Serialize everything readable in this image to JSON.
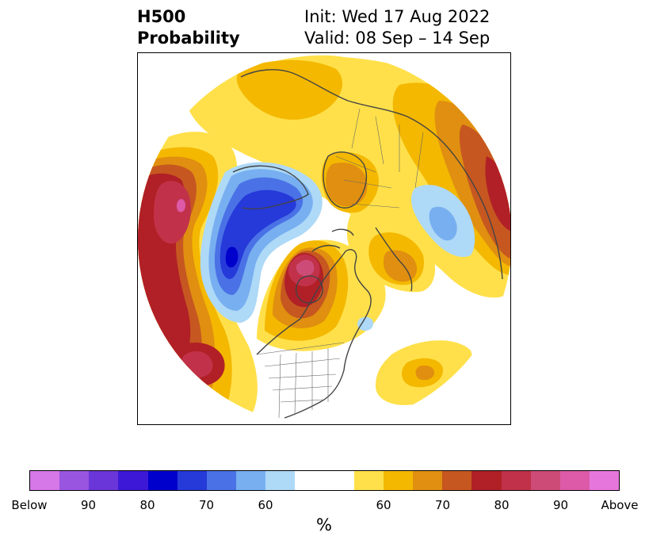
{
  "title": {
    "line1": "H500",
    "line2": "Probability",
    "init": "Init: Wed 17 Aug 2022",
    "valid": "Valid: 08 Sep – 14 Sep"
  },
  "colorbar": {
    "unit": "%",
    "colors": [
      "#d678e8",
      "#9a55e0",
      "#6b36d9",
      "#3d18d6",
      "#0000cc",
      "#2639d9",
      "#4a72e6",
      "#77aff0",
      "#aed9f7",
      "#ffffff",
      "#ffffff",
      "#ffe04a",
      "#f4b800",
      "#e08f10",
      "#c65720",
      "#b02026",
      "#c1324a",
      "#cd4c77",
      "#dc5aa8",
      "#e676dc"
    ],
    "tick_labels": [
      "Below",
      "90",
      "80",
      "70",
      "60",
      "60",
      "70",
      "80",
      "90",
      "Above"
    ]
  },
  "map": {
    "projection": "north-polar-stereographic",
    "field": "500 hPa geopotential height anomaly probability",
    "colors": {
      "above_60": "#ffe04a",
      "above_65": "#f4b800",
      "above_70": "#e08f10",
      "above_75": "#c65720",
      "above_80": "#b02026",
      "above_85": "#c1324a",
      "above_90": "#cd4c77",
      "above_95": "#dc5aa8",
      "below_60": "#aed9f7",
      "below_65": "#77aff0",
      "below_70": "#4a72e6",
      "below_75": "#2639d9",
      "below_80": "#0000cc",
      "coast": "#444444"
    }
  }
}
